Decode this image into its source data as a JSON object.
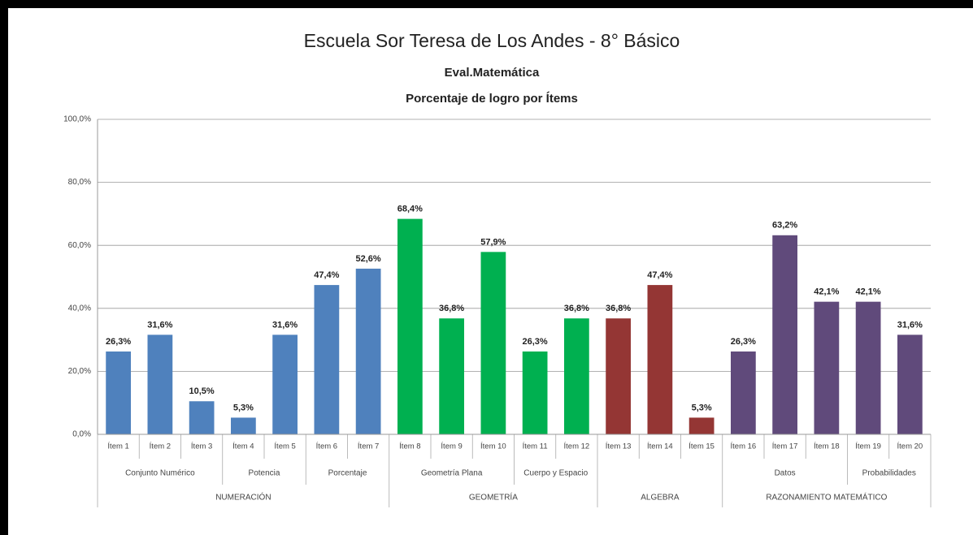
{
  "chart_data": {
    "type": "bar",
    "title": "Escuela Sor Teresa de Los Andes - 8° Básico",
    "subtitle": "Eval.Matemática",
    "subtitle2": "Porcentaje de logro por Ítems",
    "categories": [
      "Ítem 1",
      "Ítem 2",
      "Ítem 3",
      "Ítem 4",
      "Ítem 5",
      "Ítem 6",
      "Ítem 7",
      "Ítem 8",
      "Ítem 9",
      "Ítem 10",
      "Ítem 11",
      "Ítem 12",
      "Ítem 13",
      "Ítem 14",
      "Ítem 15",
      "Ítem 16",
      "Ítem 17",
      "Ítem 18",
      "Ítem 19",
      "Ítem 20"
    ],
    "values": [
      26.3,
      31.6,
      10.5,
      5.3,
      31.6,
      47.4,
      52.6,
      68.4,
      36.8,
      57.9,
      26.3,
      36.8,
      36.8,
      47.4,
      5.3,
      26.3,
      63.2,
      42.1,
      42.1,
      31.6
    ],
    "value_labels": [
      "26,3%",
      "31,6%",
      "10,5%",
      "5,3%",
      "31,6%",
      "47,4%",
      "52,6%",
      "68,4%",
      "36,8%",
      "57,9%",
      "26,3%",
      "36,8%",
      "36,8%",
      "47,4%",
      "5,3%",
      "26,3%",
      "63,2%",
      "42,1%",
      "42,1%",
      "31,6%"
    ],
    "subgroups": [
      {
        "name": "Conjunto Numérico",
        "items": 3
      },
      {
        "name": "Potencia",
        "items": 2
      },
      {
        "name": "Porcentaje",
        "items": 2
      },
      {
        "name": "Geometría Plana",
        "items": 3
      },
      {
        "name": "Cuerpo y Espacio",
        "items": 2
      },
      {
        "name": null,
        "items": 3
      },
      {
        "name": "Datos",
        "items": 3
      },
      {
        "name": "Probabilidades",
        "items": 2
      }
    ],
    "groups": [
      {
        "name": "NUMERACIÓN",
        "items": 7,
        "color": "#4f81bd"
      },
      {
        "name": "GEOMETRÍA",
        "items": 5,
        "color": "#00b050"
      },
      {
        "name": "ALGEBRA",
        "items": 3,
        "color": "#943634"
      },
      {
        "name": "RAZONAMIENTO MATEMÁTICO",
        "items": 5,
        "color": "#604a7b"
      }
    ],
    "ylim": [
      0,
      100
    ],
    "yticks": [
      {
        "value": 0,
        "label": "0,0%"
      },
      {
        "value": 20,
        "label": "20,0%"
      },
      {
        "value": 40,
        "label": "40,0%"
      },
      {
        "value": 60,
        "label": "60,0%"
      },
      {
        "value": 80,
        "label": "80,0%"
      },
      {
        "value": 100,
        "label": "100,0%"
      }
    ],
    "grid": true
  }
}
